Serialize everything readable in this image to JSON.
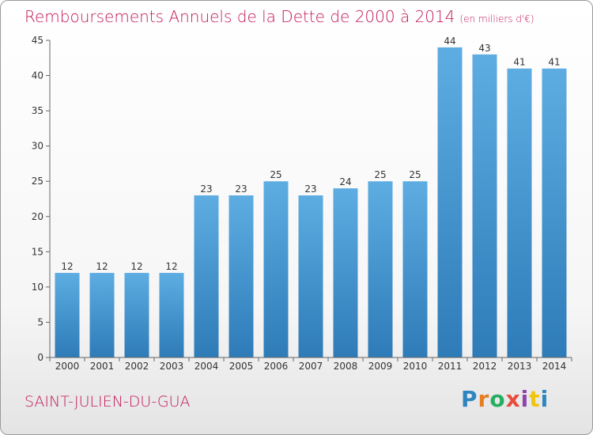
{
  "title": "Remboursements Annuels de la Dette de 2000 à 2014",
  "subtitle": "(en milliers d'€)",
  "city": "SAINT-JULIEN-DU-GUA",
  "brand": {
    "text": "Proxiti",
    "letters": [
      {
        "ch": "P",
        "color": "#2e86c1"
      },
      {
        "ch": "r",
        "color": "#e67e22"
      },
      {
        "ch": "o",
        "color": "#27ae60"
      },
      {
        "ch": "x",
        "color": "#e74c3c"
      },
      {
        "ch": "i",
        "color": "#8e44ad"
      },
      {
        "ch": "t",
        "color": "#f1c40f"
      },
      {
        "ch": "i",
        "color": "#2e86c1"
      }
    ]
  },
  "chart_data": {
    "type": "bar",
    "categories": [
      "2000",
      "2001",
      "2002",
      "2003",
      "2004",
      "2005",
      "2006",
      "2007",
      "2008",
      "2009",
      "2010",
      "2011",
      "2012",
      "2013",
      "2014"
    ],
    "values": [
      12,
      12,
      12,
      12,
      23,
      23,
      25,
      23,
      24,
      25,
      25,
      44,
      43,
      41,
      41
    ],
    "title": "Remboursements Annuels de la Dette de 2000 à 2014",
    "subtitle": "(en milliers d'€)",
    "xlabel": "",
    "ylabel": "",
    "ylim": [
      0,
      45
    ],
    "yticks": [
      0,
      5,
      10,
      15,
      20,
      25,
      30,
      35,
      40,
      45
    ],
    "grid": false,
    "bar_color_top": "#5dade2",
    "bar_color_bottom": "#2e7bb8"
  }
}
